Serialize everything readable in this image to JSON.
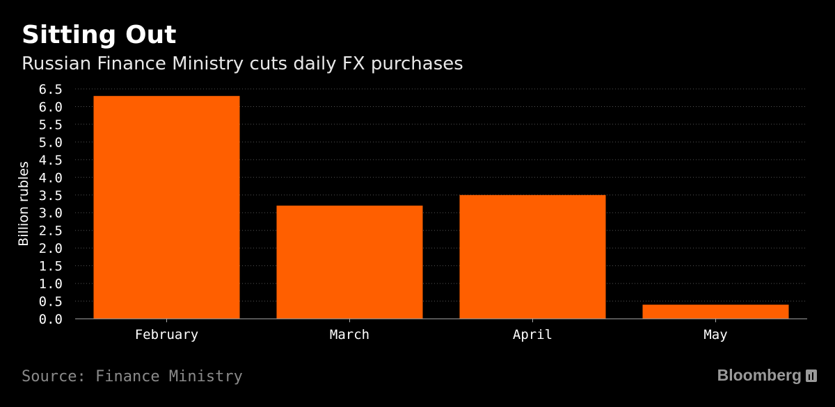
{
  "title": "Sitting Out",
  "subtitle": "Russian Finance Ministry cuts daily FX purchases",
  "source": "Source: Finance Ministry",
  "brand": "Bloomberg",
  "colors": {
    "bar": "#ff5f00",
    "background": "#000000",
    "grid": "#555555"
  },
  "chart_data": {
    "type": "bar",
    "categories": [
      "February",
      "March",
      "April",
      "May"
    ],
    "values": [
      6.3,
      3.2,
      3.5,
      0.4
    ],
    "ylabel": "Billion rubles",
    "xlabel": "",
    "ylim": [
      0,
      6.5
    ],
    "yticks": [
      "0.0",
      "0.5",
      "1.0",
      "1.5",
      "2.0",
      "2.5",
      "3.0",
      "3.5",
      "4.0",
      "4.5",
      "5.0",
      "5.5",
      "6.0",
      "6.5"
    ],
    "grid": true,
    "legend": "none"
  }
}
